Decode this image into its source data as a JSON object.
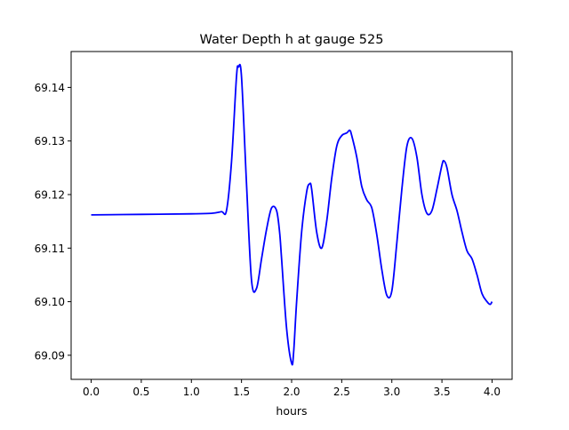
{
  "chart_data": {
    "type": "line",
    "title": "Water Depth h at gauge 525",
    "xlabel": "hours",
    "ylabel": "",
    "xlim": [
      -0.2,
      4.2
    ],
    "ylim": [
      69.0855,
      69.1467
    ],
    "grid": false,
    "legend": "none",
    "xticks": [
      0.0,
      0.5,
      1.0,
      1.5,
      2.0,
      2.5,
      3.0,
      3.5,
      4.0
    ],
    "xtick_labels": [
      "0.0",
      "0.5",
      "1.0",
      "1.5",
      "2.0",
      "2.5",
      "3.0",
      "3.5",
      "4.0"
    ],
    "yticks": [
      69.09,
      69.1,
      69.11,
      69.12,
      69.13,
      69.14
    ],
    "ytick_labels": [
      "69.09",
      "69.10",
      "69.11",
      "69.12",
      "69.13",
      "69.14"
    ],
    "series": [
      {
        "color": "#0000ff",
        "x": [
          0.0,
          0.5,
          1.0,
          1.2,
          1.3,
          1.35,
          1.4,
          1.45,
          1.47,
          1.5,
          1.55,
          1.6,
          1.65,
          1.7,
          1.75,
          1.8,
          1.85,
          1.88,
          1.9,
          1.95,
          2.0,
          2.02,
          2.05,
          2.1,
          2.15,
          2.18,
          2.2,
          2.25,
          2.3,
          2.35,
          2.4,
          2.45,
          2.5,
          2.55,
          2.58,
          2.6,
          2.65,
          2.7,
          2.75,
          2.8,
          2.85,
          2.9,
          2.95,
          3.0,
          3.05,
          3.1,
          3.15,
          3.2,
          3.25,
          3.3,
          3.35,
          3.4,
          3.45,
          3.5,
          3.52,
          3.55,
          3.6,
          3.65,
          3.7,
          3.75,
          3.8,
          3.85,
          3.9,
          3.95,
          3.98,
          4.0
        ],
        "y": [
          69.1162,
          69.1163,
          69.1164,
          69.1165,
          69.1168,
          69.117,
          69.126,
          69.142,
          69.1438,
          69.142,
          69.122,
          69.104,
          69.1025,
          69.108,
          69.1135,
          69.1175,
          69.117,
          69.113,
          69.108,
          69.095,
          69.0885,
          69.0905,
          69.1,
          69.113,
          69.1205,
          69.122,
          69.121,
          69.113,
          69.11,
          69.115,
          69.123,
          69.129,
          69.131,
          69.1315,
          69.132,
          69.131,
          69.127,
          69.1215,
          69.119,
          69.1175,
          69.1125,
          69.106,
          69.1012,
          69.102,
          69.111,
          69.121,
          69.129,
          69.1305,
          69.127,
          69.12,
          69.1165,
          69.117,
          69.121,
          69.1255,
          69.1263,
          69.125,
          69.12,
          69.117,
          69.113,
          69.1095,
          69.108,
          69.105,
          69.1015,
          69.1,
          69.0995,
          69.1
        ]
      }
    ]
  }
}
